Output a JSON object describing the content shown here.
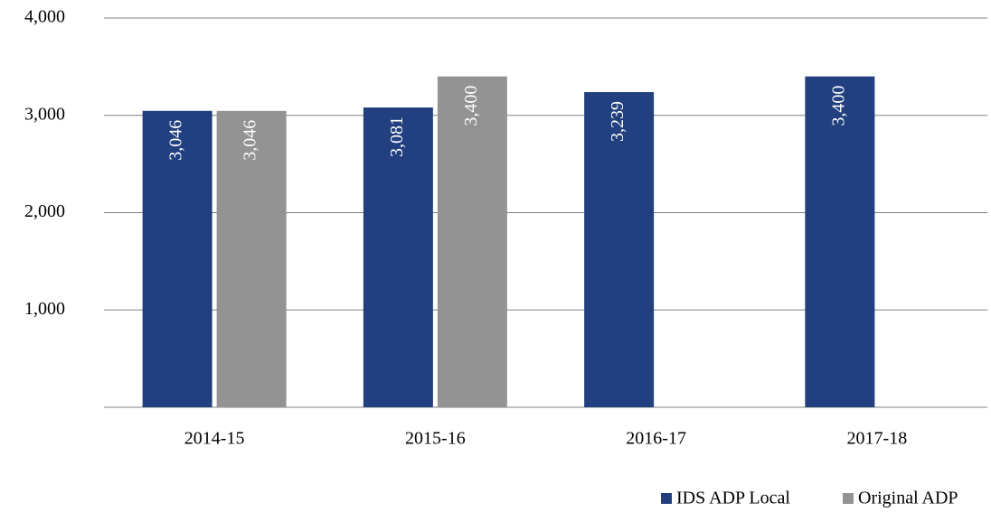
{
  "chart_data": {
    "type": "bar",
    "categories": [
      "2014-15",
      "2015-16",
      "2016-17",
      "2017-18"
    ],
    "series": [
      {
        "name": "IDS ADP Local",
        "color": "#22407f",
        "values": [
          3046,
          3081,
          3239,
          3400
        ],
        "value_labels": [
          "3,046",
          "3,081",
          "3,239",
          "3,400"
        ]
      },
      {
        "name": "Original ADP",
        "color": "#939393",
        "values": [
          3046,
          3400,
          null,
          null
        ],
        "value_labels": [
          "3,046",
          "3,400",
          null,
          null
        ]
      }
    ],
    "ylim": [
      0,
      4000
    ],
    "yticks": [
      {
        "value": 1000,
        "label": "1,000"
      },
      {
        "value": 2000,
        "label": "2,000"
      },
      {
        "value": 3000,
        "label": "3,000"
      },
      {
        "value": 4000,
        "label": "4,000"
      }
    ],
    "grid": true,
    "legend": "bottom-right"
  }
}
